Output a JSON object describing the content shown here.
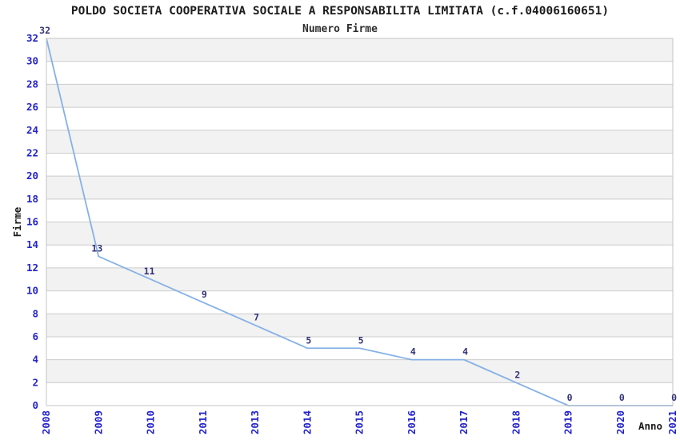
{
  "header": {
    "title": "POLDO SOCIETA COOPERATIVA SOCIALE A RESPONSABILITA LIMITATA (c.f.04006160651)",
    "subtitle": "Numero Firme"
  },
  "chart_data": {
    "type": "line",
    "title": "POLDO SOCIETA COOPERATIVA SOCIALE A RESPONSABILITA LIMITATA (c.f.04006160651)",
    "subtitle": "Numero Firme",
    "categories": [
      "2008",
      "2009",
      "2010",
      "2011",
      "2013",
      "2014",
      "2015",
      "2016",
      "2017",
      "2018",
      "2019",
      "2020",
      "2021"
    ],
    "values": [
      32,
      13,
      11,
      9,
      7,
      5,
      5,
      4,
      4,
      2,
      0,
      0,
      0
    ],
    "xlabel": "Anno",
    "ylabel": "Firme",
    "ylim": [
      0,
      32
    ],
    "ytick_step": 2,
    "grid": "horizontal-only",
    "bands": "alternating-gray-from-top",
    "data_labels": true,
    "legend": "none",
    "colors": {
      "line": "#85b1e6",
      "tick_label": "#2323cd",
      "point_label": "#333377",
      "band_gray": "#f2f2f2",
      "grid_line": "#cccccc",
      "frame": "#c4c4c4",
      "title_text": "#1c1c1c",
      "axis_title_text": "#1c1c1c"
    }
  }
}
